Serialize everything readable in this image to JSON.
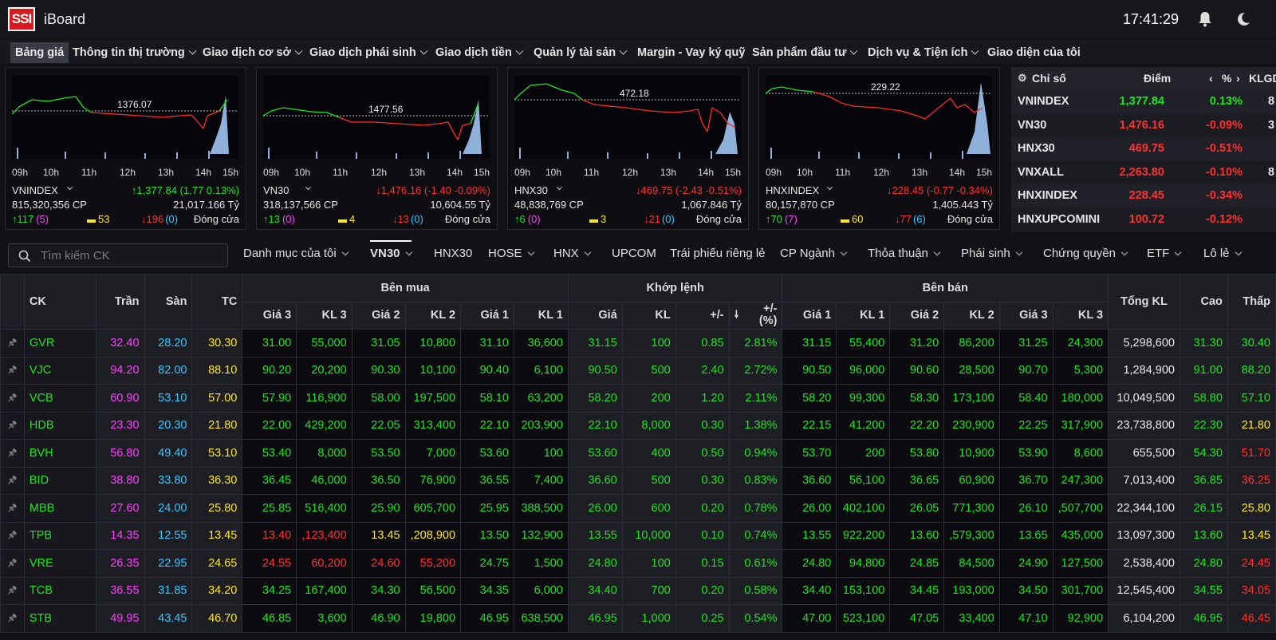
{
  "header": {
    "logo": "SSI",
    "app": "iBoard",
    "time": "17:41:29"
  },
  "menu": [
    {
      "label": "Bảng giá",
      "chev": false
    },
    {
      "label": "Thông tin thị trường",
      "chev": true
    },
    {
      "label": "Giao dịch cơ sở",
      "chev": true
    },
    {
      "label": "Giao dịch phái sinh",
      "chev": true
    },
    {
      "label": "Giao dịch tiền",
      "chev": true
    },
    {
      "label": "Quản lý tài sản",
      "chev": true
    },
    {
      "label": "Margin - Vay ký quỹ",
      "chev": false
    },
    {
      "label": "Sản phẩm đầu tư",
      "chev": true
    },
    {
      "label": "Dịch vụ & Tiện ích",
      "chev": true
    },
    {
      "label": "Giao diện của tôi",
      "chev": false
    }
  ],
  "panels": [
    {
      "name": "VNINDEX",
      "ref": "1376.07",
      "change": "↑1,377.84 (1.77 0.13%)",
      "changeColor": "#1ee61e",
      "volume": "815,320,356 CP",
      "value": "21,017.166 Tỷ",
      "up": "117",
      "upCeil": "(5)",
      "flat": "53",
      "down": "196",
      "downFloor": "(0)",
      "status": "Đóng cửa",
      "ticks": [
        "09h",
        "10h",
        "11h",
        "12h",
        "13h",
        "14h",
        "15h"
      ]
    },
    {
      "name": "VN30",
      "ref": "1477.56",
      "change": "↓1,476.16 (-1.40 -0.09%)",
      "changeColor": "#ff3030",
      "volume": "318,137,566 CP",
      "value": "10,604.55 Tỷ",
      "up": "13",
      "upCeil": "(0)",
      "flat": "4",
      "down": "13",
      "downFloor": "(0)",
      "status": "Đóng cửa",
      "ticks": [
        "09h",
        "10h",
        "11h",
        "12h",
        "13h",
        "14h",
        "15h"
      ]
    },
    {
      "name": "HNX30",
      "ref": "472.18",
      "change": "↓469.75 (-2.43 -0.51%)",
      "changeColor": "#ff3030",
      "volume": "48,838,769 CP",
      "value": "1,067.846 Tỷ",
      "up": "6",
      "upCeil": "(0)",
      "flat": "3",
      "down": "21",
      "downFloor": "(0)",
      "status": "Đóng cửa",
      "ticks": [
        "09h",
        "10h",
        "11h",
        "12h",
        "13h",
        "14h",
        "15h"
      ]
    },
    {
      "name": "HNXINDEX",
      "ref": "229.22",
      "change": "↓228.45 (-0.77 -0.34%)",
      "changeColor": "#ff3030",
      "volume": "80,157,870 CP",
      "value": "1,405.443 Tỷ",
      "up": "70",
      "upCeil": "(7)",
      "flat": "60",
      "down": "77",
      "downFloor": "(6)",
      "status": "Đóng cửa",
      "ticks": [
        "09h",
        "10h",
        "11h",
        "12h",
        "13h",
        "14h",
        "15h"
      ]
    }
  ],
  "indices": {
    "headers": {
      "name": "Chỉ số",
      "point": "Điểm",
      "pct": "%",
      "klgd": "KLGD"
    },
    "rows": [
      {
        "name": "VNINDEX",
        "point": "1,377.84",
        "pct": "0.13%",
        "color": "#1ee61e",
        "extra": "8"
      },
      {
        "name": "VN30",
        "point": "1,476.16",
        "pct": "-0.09%",
        "color": "#ff3030",
        "extra": "3"
      },
      {
        "name": "HNX30",
        "point": "469.75",
        "pct": "-0.51%",
        "color": "#ff3030",
        "extra": ""
      },
      {
        "name": "VNXALL",
        "point": "2,263.80",
        "pct": "-0.10%",
        "color": "#ff3030",
        "extra": "8"
      },
      {
        "name": "HNXINDEX",
        "point": "228.45",
        "pct": "-0.34%",
        "color": "#ff3030",
        "extra": ""
      },
      {
        "name": "HNXUPCOMINI",
        "point": "100.72",
        "pct": "-0.12%",
        "color": "#ff3030",
        "extra": ""
      }
    ]
  },
  "filter": {
    "placeholder": "Tìm kiếm CK",
    "tabs": [
      {
        "label": "Danh mục của tôi",
        "chev": true,
        "active": false
      },
      {
        "label": "VN30",
        "chev": true,
        "active": true
      },
      {
        "label": "HNX30",
        "chev": false,
        "active": false
      },
      {
        "label": "HOSE",
        "chev": true,
        "active": false
      },
      {
        "label": "HNX",
        "chev": true,
        "active": false
      },
      {
        "label": "UPCOM",
        "chev": false,
        "active": false
      },
      {
        "label": "Trái phiếu riêng lẻ",
        "chev": false,
        "active": false
      },
      {
        "label": "CP Ngành",
        "chev": true,
        "active": false
      },
      {
        "label": "Thỏa thuận",
        "chev": true,
        "active": false
      },
      {
        "label": "Phái sinh",
        "chev": true,
        "active": false
      },
      {
        "label": "Chứng quyền",
        "chev": true,
        "active": false
      },
      {
        "label": "ETF",
        "chev": true,
        "active": false
      },
      {
        "label": "Lô lẻ",
        "chev": true,
        "active": false
      }
    ]
  },
  "table": {
    "groups": {
      "buy": "Bên mua",
      "match": "Khớp lệnh",
      "sell": "Bên bán"
    },
    "cols": {
      "ck": "CK",
      "tran": "Trần",
      "san": "Sàn",
      "tc": "TC",
      "g3": "Giá 3",
      "kl3": "KL 3",
      "g2": "Giá 2",
      "kl2": "KL 2",
      "g1": "Giá 1",
      "kl1": "KL 1",
      "gia": "Giá",
      "kl": "KL",
      "chg": "+/-",
      "pct": "+/-\n(%)",
      "tongkl": "Tổng KL",
      "cao": "Cao",
      "thap": "Thấp"
    },
    "rows": [
      {
        "ck": "GVR",
        "tran": "32.40",
        "san": "28.20",
        "tc": "30.30",
        "b3": "31.00",
        "bk3": "55,000",
        "b2": "31.05",
        "bk2": "10,800",
        "b1": "31.10",
        "bk1": "36,600",
        "m": "31.15",
        "mk": "100",
        "ch": "0.85",
        "pc": "2.81%",
        "s1": "31.15",
        "sk1": "55,400",
        "s2": "31.20",
        "sk2": "86,200",
        "s3": "31.25",
        "sk3": "24,300",
        "tk": "5,298,600",
        "hi": "31.30",
        "lo": "30.40",
        "c": {
          "sym": "grn",
          "b3": "grn",
          "b2": "grn",
          "b1": "grn",
          "m": "grn",
          "s1": "grn",
          "s2": "grn",
          "s3": "grn",
          "hi": "grn",
          "lo": "grn"
        }
      },
      {
        "ck": "VJC",
        "tran": "94.20",
        "san": "82.00",
        "tc": "88.10",
        "b3": "90.20",
        "bk3": "20,200",
        "b2": "90.30",
        "bk2": "10,100",
        "b1": "90.40",
        "bk1": "6,100",
        "m": "90.50",
        "mk": "500",
        "ch": "2.40",
        "pc": "2.72%",
        "s1": "90.50",
        "sk1": "96,000",
        "s2": "90.60",
        "sk2": "28,500",
        "s3": "90.70",
        "sk3": "5,300",
        "tk": "1,284,900",
        "hi": "91.00",
        "lo": "88.20",
        "c": {
          "sym": "grn",
          "b3": "grn",
          "b2": "grn",
          "b1": "grn",
          "m": "grn",
          "s1": "grn",
          "s2": "grn",
          "s3": "grn",
          "hi": "grn",
          "lo": "grn"
        }
      },
      {
        "ck": "VCB",
        "tran": "60.90",
        "san": "53.10",
        "tc": "57.00",
        "b3": "57.90",
        "bk3": "116,900",
        "b2": "58.00",
        "bk2": "197,500",
        "b1": "58.10",
        "bk1": "63,200",
        "m": "58.20",
        "mk": "200",
        "ch": "1.20",
        "pc": "2.11%",
        "s1": "58.20",
        "sk1": "99,300",
        "s2": "58.30",
        "sk2": "173,100",
        "s3": "58.40",
        "sk3": "180,000",
        "tk": "10,049,500",
        "hi": "58.80",
        "lo": "57.10",
        "c": {
          "sym": "grn",
          "b3": "grn",
          "b2": "grn",
          "b1": "grn",
          "m": "grn",
          "s1": "grn",
          "s2": "grn",
          "s3": "grn",
          "hi": "grn",
          "lo": "grn"
        }
      },
      {
        "ck": "HDB",
        "tran": "23.30",
        "san": "20.30",
        "tc": "21.80",
        "b3": "22.00",
        "bk3": "429,200",
        "b2": "22.05",
        "bk2": "313,400",
        "b1": "22.10",
        "bk1": "203,900",
        "m": "22.10",
        "mk": "8,000",
        "ch": "0.30",
        "pc": "1.38%",
        "s1": "22.15",
        "sk1": "41,200",
        "s2": "22.20",
        "sk2": "230,900",
        "s3": "22.25",
        "sk3": "317,900",
        "tk": "23,738,800",
        "hi": "22.30",
        "lo": "21.80",
        "c": {
          "sym": "grn",
          "b3": "grn",
          "b2": "grn",
          "b1": "grn",
          "m": "grn",
          "s1": "grn",
          "s2": "grn",
          "s3": "grn",
          "hi": "grn",
          "lo": "ylw"
        }
      },
      {
        "ck": "BVH",
        "tran": "56.80",
        "san": "49.40",
        "tc": "53.10",
        "b3": "53.40",
        "bk3": "8,000",
        "b2": "53.50",
        "bk2": "7,000",
        "b1": "53.60",
        "bk1": "100",
        "m": "53.60",
        "mk": "400",
        "ch": "0.50",
        "pc": "0.94%",
        "s1": "53.70",
        "sk1": "200",
        "s2": "53.80",
        "sk2": "10,900",
        "s3": "53.90",
        "sk3": "8,600",
        "tk": "655,500",
        "hi": "54.30",
        "lo": "51.70",
        "c": {
          "sym": "grn",
          "b3": "grn",
          "b2": "grn",
          "b1": "grn",
          "m": "grn",
          "s1": "grn",
          "s2": "grn",
          "s3": "grn",
          "hi": "grn",
          "lo": "red"
        }
      },
      {
        "ck": "BID",
        "tran": "38.80",
        "san": "33.80",
        "tc": "36.30",
        "b3": "36.45",
        "bk3": "46,000",
        "b2": "36.50",
        "bk2": "76,900",
        "b1": "36.55",
        "bk1": "7,400",
        "m": "36.60",
        "mk": "500",
        "ch": "0.30",
        "pc": "0.83%",
        "s1": "36.60",
        "sk1": "56,100",
        "s2": "36.65",
        "sk2": "60,900",
        "s3": "36.70",
        "sk3": "247,300",
        "tk": "7,013,400",
        "hi": "36.85",
        "lo": "36.25",
        "c": {
          "sym": "grn",
          "b3": "grn",
          "b2": "grn",
          "b1": "grn",
          "m": "grn",
          "s1": "grn",
          "s2": "grn",
          "s3": "grn",
          "hi": "grn",
          "lo": "red"
        }
      },
      {
        "ck": "MBB",
        "tran": "27.60",
        "san": "24.00",
        "tc": "25.80",
        "b3": "25.85",
        "bk3": "516,400",
        "b2": "25.90",
        "bk2": "605,700",
        "b1": "25.95",
        "bk1": "388,500",
        "m": "26.00",
        "mk": "600",
        "ch": "0.20",
        "pc": "0.78%",
        "s1": "26.00",
        "sk1": "402,100",
        "s2": "26.05",
        "sk2": "771,300",
        "s3": "26.10",
        "sk3": ",507,700",
        "tk": "22,344,100",
        "hi": "26.15",
        "lo": "25.80",
        "c": {
          "sym": "grn",
          "b3": "grn",
          "b2": "grn",
          "b1": "grn",
          "m": "grn",
          "s1": "grn",
          "s2": "grn",
          "s3": "grn",
          "hi": "grn",
          "lo": "ylw"
        }
      },
      {
        "ck": "TPB",
        "tran": "14.35",
        "san": "12.55",
        "tc": "13.45",
        "b3": "13.40",
        "bk3": ",123,400",
        "b2": "13.45",
        "bk2": ",208,900",
        "b1": "13.50",
        "bk1": "132,900",
        "m": "13.55",
        "mk": "10,000",
        "ch": "0.10",
        "pc": "0.74%",
        "s1": "13.55",
        "sk1": "922,200",
        "s2": "13.60",
        "sk2": ",579,300",
        "s3": "13.65",
        "sk3": "435,000",
        "tk": "13,097,300",
        "hi": "13.60",
        "lo": "13.45",
        "c": {
          "sym": "grn",
          "b3": "red",
          "b2": "ylw",
          "b1": "grn",
          "m": "grn",
          "s1": "grn",
          "s2": "grn",
          "s3": "grn",
          "hi": "grn",
          "lo": "ylw"
        }
      },
      {
        "ck": "VRE",
        "tran": "26.35",
        "san": "22.95",
        "tc": "24.65",
        "b3": "24.55",
        "bk3": "60,200",
        "b2": "24.60",
        "bk2": "55,200",
        "b1": "24.75",
        "bk1": "1,500",
        "m": "24.80",
        "mk": "100",
        "ch": "0.15",
        "pc": "0.61%",
        "s1": "24.80",
        "sk1": "94,800",
        "s2": "24.85",
        "sk2": "84,500",
        "s3": "24.90",
        "sk3": "127,500",
        "tk": "2,538,400",
        "hi": "24.80",
        "lo": "24.45",
        "c": {
          "sym": "grn",
          "b3": "red",
          "b2": "red",
          "b1": "grn",
          "m": "grn",
          "s1": "grn",
          "s2": "grn",
          "s3": "grn",
          "hi": "grn",
          "lo": "red"
        }
      },
      {
        "ck": "TCB",
        "tran": "36.55",
        "san": "31.85",
        "tc": "34.20",
        "b3": "34.25",
        "bk3": "167,400",
        "b2": "34.30",
        "bk2": "56,500",
        "b1": "34.35",
        "bk1": "6,000",
        "m": "34.40",
        "mk": "700",
        "ch": "0.20",
        "pc": "0.58%",
        "s1": "34.40",
        "sk1": "153,100",
        "s2": "34.45",
        "sk2": "193,000",
        "s3": "34.50",
        "sk3": "301,700",
        "tk": "12,545,400",
        "hi": "34.55",
        "lo": "34.05",
        "c": {
          "sym": "grn",
          "b3": "grn",
          "b2": "grn",
          "b1": "grn",
          "m": "grn",
          "s1": "grn",
          "s2": "grn",
          "s3": "grn",
          "hi": "grn",
          "lo": "red"
        }
      },
      {
        "ck": "STB",
        "tran": "49.95",
        "san": "43.45",
        "tc": "46.70",
        "b3": "46.85",
        "bk3": "3,600",
        "b2": "46.90",
        "bk2": "19,800",
        "b1": "46.95",
        "bk1": "638,500",
        "m": "46.95",
        "mk": "1,000",
        "ch": "0.25",
        "pc": "0.54%",
        "s1": "47.00",
        "sk1": "523,100",
        "s2": "47.05",
        "sk2": "33,400",
        "s3": "47.10",
        "sk3": "92,900",
        "tk": "6,104,200",
        "hi": "46.95",
        "lo": "46.45",
        "c": {
          "sym": "grn",
          "b3": "grn",
          "b2": "grn",
          "b1": "grn",
          "m": "grn",
          "s1": "grn",
          "s2": "grn",
          "s3": "grn",
          "hi": "grn",
          "lo": "red"
        }
      }
    ]
  }
}
